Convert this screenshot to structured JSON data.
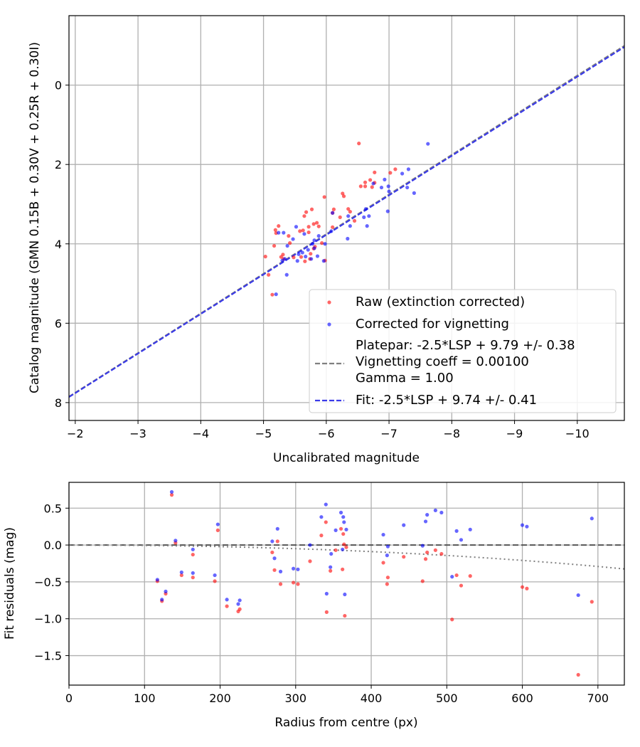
{
  "chart_data": [
    {
      "type": "scatter",
      "xlabel": "Uncalibrated magnitude",
      "ylabel": "Catalog magnitude (GMN 0.15B + 0.30V + 0.25R + 0.30I)",
      "xlim": [
        -1.9,
        -10.75
      ],
      "ylim": [
        8.45,
        -1.75
      ],
      "xticks": [
        -2,
        -3,
        -4,
        -5,
        -6,
        -7,
        -8,
        -9,
        -10
      ],
      "yticks": [
        0,
        2,
        4,
        6,
        8
      ],
      "grid": true,
      "legend_position": "lower-right",
      "series": [
        {
          "name": "Raw (extinction corrected)",
          "color": "#ff0000",
          "points": [
            [
              -6.52,
              1.47
            ],
            [
              -7.1,
              2.12
            ],
            [
              -6.77,
              2.2
            ],
            [
              -7.02,
              2.21
            ],
            [
              -6.7,
              2.39
            ],
            [
              -6.62,
              2.45
            ],
            [
              -6.77,
              2.46
            ],
            [
              -6.55,
              2.55
            ],
            [
              -6.62,
              2.55
            ],
            [
              -6.73,
              2.57
            ],
            [
              -6.26,
              2.73
            ],
            [
              -6.28,
              2.8
            ],
            [
              -5.97,
              2.82
            ],
            [
              -6.12,
              3.13
            ],
            [
              -5.77,
              3.13
            ],
            [
              -6.35,
              3.12
            ],
            [
              -6.38,
              3.19
            ],
            [
              -5.68,
              3.2
            ],
            [
              -6.1,
              3.22
            ],
            [
              -5.65,
              3.3
            ],
            [
              -6.22,
              3.33
            ],
            [
              -6.45,
              3.42
            ],
            [
              -5.85,
              3.47
            ],
            [
              -5.8,
              3.5
            ],
            [
              -5.88,
              3.56
            ],
            [
              -5.72,
              3.57
            ],
            [
              -6.1,
              3.58
            ],
            [
              -5.24,
              3.55
            ],
            [
              -5.19,
              3.65
            ],
            [
              -5.63,
              3.66
            ],
            [
              -5.58,
              3.68
            ],
            [
              -5.72,
              3.71
            ],
            [
              -5.2,
              3.73
            ],
            [
              -5.4,
              3.8
            ],
            [
              -5.93,
              3.98
            ],
            [
              -5.42,
              3.98
            ],
            [
              -5.17,
              4.05
            ],
            [
              -5.82,
              4.07
            ],
            [
              -5.8,
              4.12
            ],
            [
              -5.75,
              4.25
            ],
            [
              -5.31,
              4.27
            ],
            [
              -5.28,
              4.33
            ],
            [
              -5.6,
              4.33
            ],
            [
              -5.48,
              4.34
            ],
            [
              -5.03,
              4.32
            ],
            [
              -5.32,
              4.38
            ],
            [
              -5.74,
              4.38
            ],
            [
              -5.66,
              4.44
            ],
            [
              -5.98,
              4.42
            ],
            [
              -5.08,
              4.78
            ],
            [
              -5.14,
              5.28
            ]
          ]
        },
        {
          "name": "Corrected for vignetting",
          "color": "#0000ff",
          "points": [
            [
              -7.62,
              1.48
            ],
            [
              -7.31,
              2.12
            ],
            [
              -7.21,
              2.23
            ],
            [
              -6.93,
              2.38
            ],
            [
              -6.75,
              2.48
            ],
            [
              -6.99,
              2.55
            ],
            [
              -7.29,
              2.58
            ],
            [
              -6.88,
              2.58
            ],
            [
              -7.0,
              2.68
            ],
            [
              -7.4,
              2.72
            ],
            [
              -6.98,
              3.18
            ],
            [
              -6.63,
              3.12
            ],
            [
              -6.68,
              3.3
            ],
            [
              -6.35,
              3.3
            ],
            [
              -6.6,
              3.33
            ],
            [
              -6.1,
              3.22
            ],
            [
              -6.38,
              3.55
            ],
            [
              -6.65,
              3.55
            ],
            [
              -5.52,
              3.57
            ],
            [
              -6.08,
              3.68
            ],
            [
              -5.24,
              3.72
            ],
            [
              -5.32,
              3.72
            ],
            [
              -5.65,
              3.75
            ],
            [
              -5.88,
              3.8
            ],
            [
              -6.34,
              3.87
            ],
            [
              -5.47,
              3.88
            ],
            [
              -5.81,
              3.91
            ],
            [
              -5.78,
              4.0
            ],
            [
              -5.98,
              4.0
            ],
            [
              -5.38,
              4.05
            ],
            [
              -5.81,
              4.11
            ],
            [
              -5.71,
              4.15
            ],
            [
              -5.62,
              4.22
            ],
            [
              -5.56,
              4.26
            ],
            [
              -5.86,
              4.31
            ],
            [
              -5.67,
              4.32
            ],
            [
              -5.76,
              4.38
            ],
            [
              -5.34,
              4.38
            ],
            [
              -5.3,
              4.42
            ],
            [
              -5.54,
              4.43
            ],
            [
              -5.96,
              4.43
            ],
            [
              -5.37,
              4.78
            ],
            [
              -5.2,
              5.27
            ]
          ]
        }
      ],
      "lines": [
        {
          "name_lines": [
            "Platepar: -2.5*LSP + 9.79 +/- 0.38",
            "Vignetting coeff = 0.00100",
            "Gamma = 1.00"
          ],
          "color": "#808080",
          "style": "dashed",
          "x": [
            -1.9,
            -10.75
          ],
          "y": [
            7.85,
            -0.99
          ]
        },
        {
          "name": "Fit: -2.5*LSP + 9.74 +/- 0.41",
          "color": "#3a3ae8",
          "style": "dashed",
          "x": [
            -1.9,
            -10.75
          ],
          "y": [
            7.86,
            -0.96
          ]
        }
      ]
    },
    {
      "type": "scatter",
      "xlabel": "Radius from centre (px)",
      "ylabel": "Fit residuals (mag)",
      "xlim": [
        0,
        735
      ],
      "ylim": [
        -1.9,
        0.85
      ],
      "xticks": [
        0,
        100,
        200,
        300,
        400,
        500,
        600,
        700
      ],
      "yticks": [
        0.5,
        0.0,
        -0.5,
        -1.0,
        -1.5
      ],
      "ytick_labels": [
        "0.5",
        "0.0",
        "−0.5",
        "−1.0",
        "−1.5"
      ],
      "grid": true,
      "series": [
        {
          "color": "#ff0000",
          "points": [
            [
              117,
              -0.49
            ],
            [
              123,
              -0.76
            ],
            [
              128,
              -0.66
            ],
            [
              136,
              0.68
            ],
            [
              141,
              0.03
            ],
            [
              149,
              -0.41
            ],
            [
              164,
              -0.44
            ],
            [
              164,
              -0.13
            ],
            [
              193,
              -0.49
            ],
            [
              197,
              0.2
            ],
            [
              209,
              -0.83
            ],
            [
              224,
              -0.9
            ],
            [
              226,
              -0.87
            ],
            [
              269,
              -0.1
            ],
            [
              272,
              -0.34
            ],
            [
              276,
              0.05
            ],
            [
              280,
              -0.53
            ],
            [
              297,
              -0.51
            ],
            [
              303,
              -0.53
            ],
            [
              319,
              -0.22
            ],
            [
              334,
              0.13
            ],
            [
              340,
              0.31
            ],
            [
              341,
              -0.91
            ],
            [
              346,
              -0.35
            ],
            [
              353,
              -0.07
            ],
            [
              360,
              0.22
            ],
            [
              362,
              -0.33
            ],
            [
              363,
              0.15
            ],
            [
              364,
              0.01
            ],
            [
              365,
              -0.96
            ],
            [
              367,
              -0.03
            ],
            [
              416,
              -0.24
            ],
            [
              421,
              -0.53
            ],
            [
              422,
              -0.44
            ],
            [
              443,
              -0.16
            ],
            [
              468,
              -0.49
            ],
            [
              472,
              -0.19
            ],
            [
              474,
              -0.1
            ],
            [
              485,
              -0.07
            ],
            [
              493,
              -0.12
            ],
            [
              507,
              -1.01
            ],
            [
              513,
              -0.41
            ],
            [
              519,
              -0.55
            ],
            [
              531,
              -0.42
            ],
            [
              600,
              -0.57
            ],
            [
              606,
              -0.59
            ],
            [
              674,
              -1.76
            ],
            [
              692,
              -0.77
            ]
          ]
        },
        {
          "color": "#0000ff",
          "points": [
            [
              117,
              -0.47
            ],
            [
              123,
              -0.74
            ],
            [
              128,
              -0.63
            ],
            [
              136,
              0.72
            ],
            [
              141,
              0.06
            ],
            [
              149,
              -0.37
            ],
            [
              164,
              -0.38
            ],
            [
              164,
              -0.06
            ],
            [
              193,
              -0.41
            ],
            [
              197,
              0.28
            ],
            [
              209,
              -0.74
            ],
            [
              224,
              -0.8
            ],
            [
              226,
              -0.75
            ],
            [
              269,
              0.05
            ],
            [
              272,
              -0.18
            ],
            [
              276,
              0.22
            ],
            [
              280,
              -0.36
            ],
            [
              297,
              -0.32
            ],
            [
              303,
              -0.33
            ],
            [
              319,
              0.0
            ],
            [
              334,
              0.38
            ],
            [
              340,
              0.55
            ],
            [
              341,
              -0.66
            ],
            [
              346,
              -0.3
            ],
            [
              347,
              -0.12
            ],
            [
              353,
              0.2
            ],
            [
              360,
              0.44
            ],
            [
              362,
              -0.06
            ],
            [
              363,
              0.38
            ],
            [
              364,
              0.31
            ],
            [
              365,
              -0.67
            ],
            [
              367,
              0.21
            ],
            [
              416,
              0.14
            ],
            [
              421,
              -0.14
            ],
            [
              422,
              -0.02
            ],
            [
              443,
              0.27
            ],
            [
              468,
              -0.01
            ],
            [
              472,
              0.32
            ],
            [
              474,
              0.41
            ],
            [
              485,
              0.47
            ],
            [
              493,
              0.44
            ],
            [
              507,
              -0.43
            ],
            [
              513,
              0.19
            ],
            [
              519,
              0.07
            ],
            [
              531,
              0.21
            ],
            [
              600,
              0.27
            ],
            [
              606,
              0.25
            ],
            [
              674,
              -0.68
            ],
            [
              692,
              0.36
            ]
          ]
        }
      ],
      "reference_lines": [
        {
          "name": "zero",
          "style": "dashed",
          "color": "#555555",
          "y": 0.0
        },
        {
          "name": "vignetting curve",
          "style": "dotted",
          "color": "#808080",
          "coeff": 0.001
        }
      ]
    }
  ]
}
